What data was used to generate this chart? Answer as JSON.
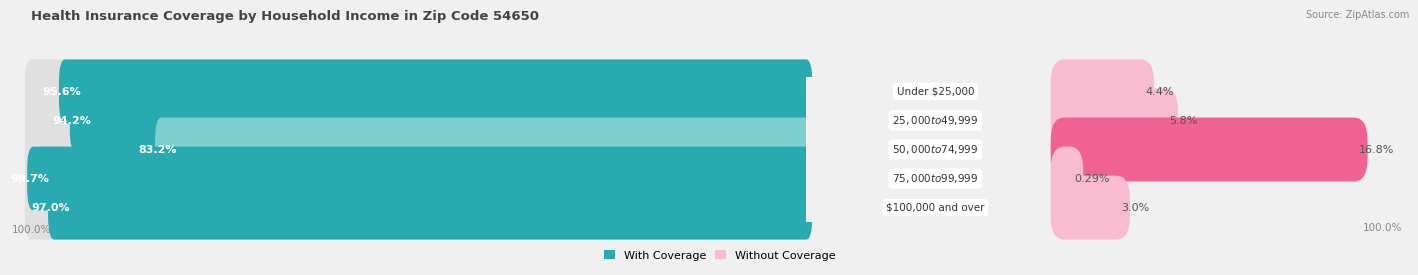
{
  "title": "Health Insurance Coverage by Household Income in Zip Code 54650",
  "source": "Source: ZipAtlas.com",
  "categories": [
    "Under $25,000",
    "$25,000 to $49,999",
    "$50,000 to $74,999",
    "$75,000 to $99,999",
    "$100,000 and over"
  ],
  "with_coverage": [
    95.6,
    94.2,
    83.2,
    99.7,
    97.0
  ],
  "without_coverage": [
    4.4,
    5.8,
    16.8,
    0.29,
    3.0
  ],
  "with_coverage_labels": [
    "95.6%",
    "94.2%",
    "83.2%",
    "99.7%",
    "97.0%"
  ],
  "without_coverage_labels": [
    "4.4%",
    "5.8%",
    "16.8%",
    "0.29%",
    "3.0%"
  ],
  "color_with_dark": "#29a9b0",
  "color_with_light": "#7ecfcf",
  "color_without_dark": "#f06292",
  "color_without_light": "#f8bbd0",
  "bg_color": "#f0f0f0",
  "bar_bg_color": "#e0e0e0",
  "title_fontsize": 9.5,
  "label_fontsize": 8,
  "tick_fontsize": 7.5,
  "legend_fontsize": 8,
  "source_fontsize": 7
}
